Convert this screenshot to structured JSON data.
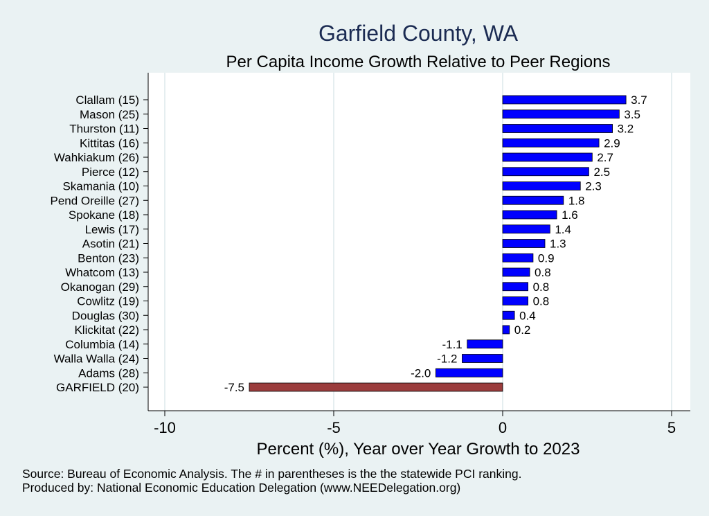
{
  "chart_data": {
    "type": "bar",
    "orientation": "horizontal",
    "title": "Garfield County, WA",
    "subtitle": "Per Capita Income Growth Relative to Peer Regions",
    "xlabel": "Percent (%), Year over Year Growth to 2023",
    "ylabel": "",
    "xlim": [
      -10,
      5
    ],
    "xticks": [
      -10,
      -5,
      0,
      5
    ],
    "grid": true,
    "categories": [
      "Clallam (15)",
      "Mason (25)",
      "Thurston (11)",
      "Kittitas (16)",
      "Wahkiakum (26)",
      "Pierce (12)",
      "Skamania (10)",
      "Pend Oreille (27)",
      "Spokane (18)",
      "Lewis (17)",
      "Asotin (21)",
      "Benton (23)",
      "Whatcom (13)",
      "Okanogan (29)",
      "Cowlitz (19)",
      "Douglas (30)",
      "Klickitat (22)",
      "Columbia (14)",
      "Walla Walla (24)",
      "Adams (28)",
      "GARFIELD (20)"
    ],
    "values": [
      3.65,
      3.45,
      3.25,
      2.85,
      2.65,
      2.55,
      2.3,
      1.8,
      1.6,
      1.4,
      1.25,
      0.9,
      0.8,
      0.75,
      0.75,
      0.35,
      0.2,
      -1.05,
      -1.2,
      -1.98,
      -7.5
    ],
    "value_labels": [
      "3.7",
      "3.5",
      "3.2",
      "2.9",
      "2.7",
      "2.5",
      "2.3",
      "1.8",
      "1.6",
      "1.4",
      "1.3",
      "0.9",
      "0.8",
      "0.8",
      "0.8",
      "0.4",
      "0.2",
      "-1.1",
      "-1.2",
      "-2.0",
      "-7.5"
    ],
    "highlight_category": "GARFIELD (20)",
    "colors": {
      "bar": "#0000ff",
      "highlight": "#9b3c3c",
      "bar_edge": "#000000",
      "title": "#1b2b52",
      "background": "#eaf2f3",
      "plot_background": "#ffffff",
      "grid": "#e5eef0"
    }
  },
  "footer": {
    "source": "Source: Bureau of Economic Analysis. The # in parentheses is the the statewide PCI ranking.",
    "producer": "Produced by: National Economic Education Delegation (www.NEEDelegation.org)"
  }
}
